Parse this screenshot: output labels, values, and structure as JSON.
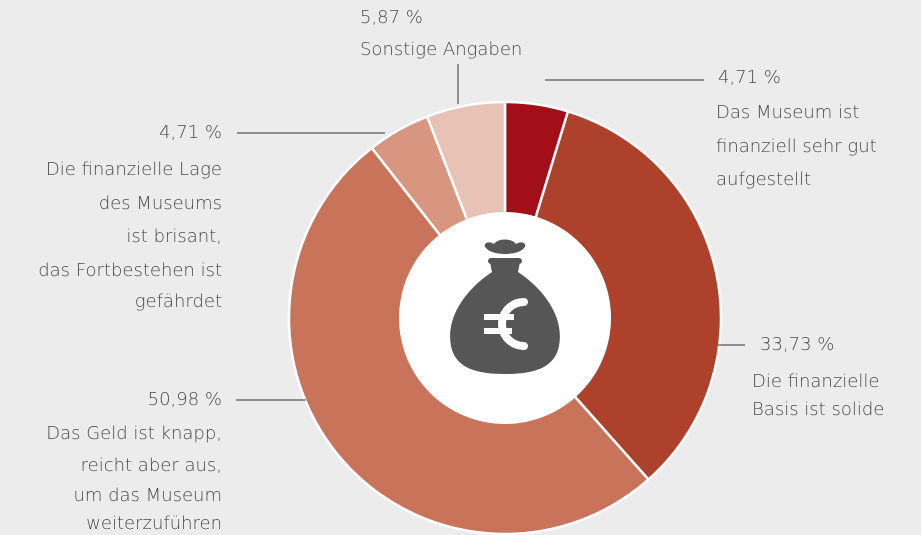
{
  "chart_data": {
    "type": "donut",
    "categories": [
      [
        "Das Museum ist",
        "finanziell sehr gut",
        "aufgestellt"
      ],
      [
        "Die finanzielle",
        "Basis ist solide"
      ],
      [
        "Das Geld ist knapp,",
        "reicht aber aus,",
        "um das Museum",
        "weiterzuführen"
      ],
      [
        "Die finanzielle Lage",
        "des Museums",
        "ist brisant,",
        "das Fortbestehen ist",
        "gefährdet"
      ],
      [
        "Sonstige Angaben"
      ]
    ],
    "values": [
      4.71,
      33.73,
      50.98,
      4.71,
      5.87
    ],
    "value_labels": [
      "4,71 %",
      "33,73 %",
      "50,98 %",
      "4,71 %",
      "5,87 %"
    ],
    "colors": [
      "#a20f19",
      "#ae412c",
      "#c8735a",
      "#d8957f",
      "#e8c2b4"
    ]
  }
}
